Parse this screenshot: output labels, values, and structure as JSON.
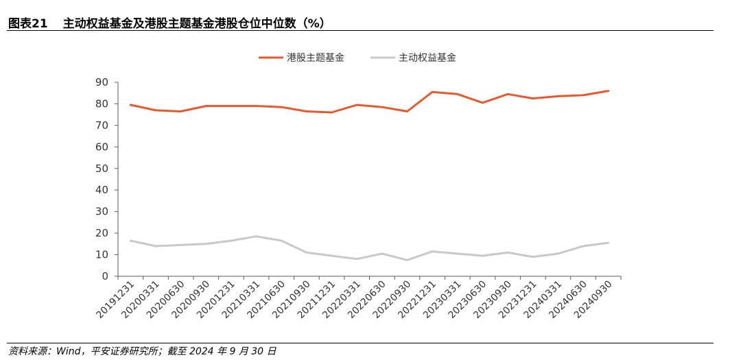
{
  "figure": {
    "number": "图表21",
    "title": "主动权益基金及港股主题基金港股仓位中位数（%）"
  },
  "source": "资料来源：Wind，平安证券研究所；截至 2024 年 9 月 30 日",
  "colors": {
    "series_hk": "#E8582A",
    "series_active": "#C8C8C8",
    "axis": "#595959",
    "text": "#333333"
  },
  "chart_data": {
    "type": "line",
    "title": "",
    "xlabel": "",
    "ylabel": "",
    "ylim": [
      0,
      90
    ],
    "yticks": [
      0,
      10,
      20,
      30,
      40,
      50,
      60,
      70,
      80,
      90
    ],
    "grid": false,
    "legend_position": "top-center",
    "categories": [
      "20191231",
      "20200331",
      "20200630",
      "20200930",
      "20201231",
      "20210331",
      "20210630",
      "20210930",
      "20211231",
      "20220331",
      "20220630",
      "20220930",
      "20221231",
      "20230331",
      "20230630",
      "20230930",
      "20231231",
      "20240331",
      "20240630",
      "20240930"
    ],
    "series": [
      {
        "name": "港股主题基金",
        "color": "#E8582A",
        "values": [
          79.5,
          77,
          76.5,
          79,
          79,
          79,
          78.5,
          76.5,
          76,
          79.5,
          78.5,
          76.5,
          85.5,
          84.5,
          80.5,
          84.5,
          82.5,
          83.5,
          84,
          86
        ]
      },
      {
        "name": "主动权益基金",
        "color": "#C8C8C8",
        "values": [
          16.5,
          14,
          14.5,
          15,
          16.5,
          18.5,
          16.5,
          11,
          9.5,
          8,
          10.5,
          7.5,
          11.5,
          10.5,
          9.5,
          11,
          9,
          10.5,
          14,
          15.5
        ]
      }
    ]
  }
}
